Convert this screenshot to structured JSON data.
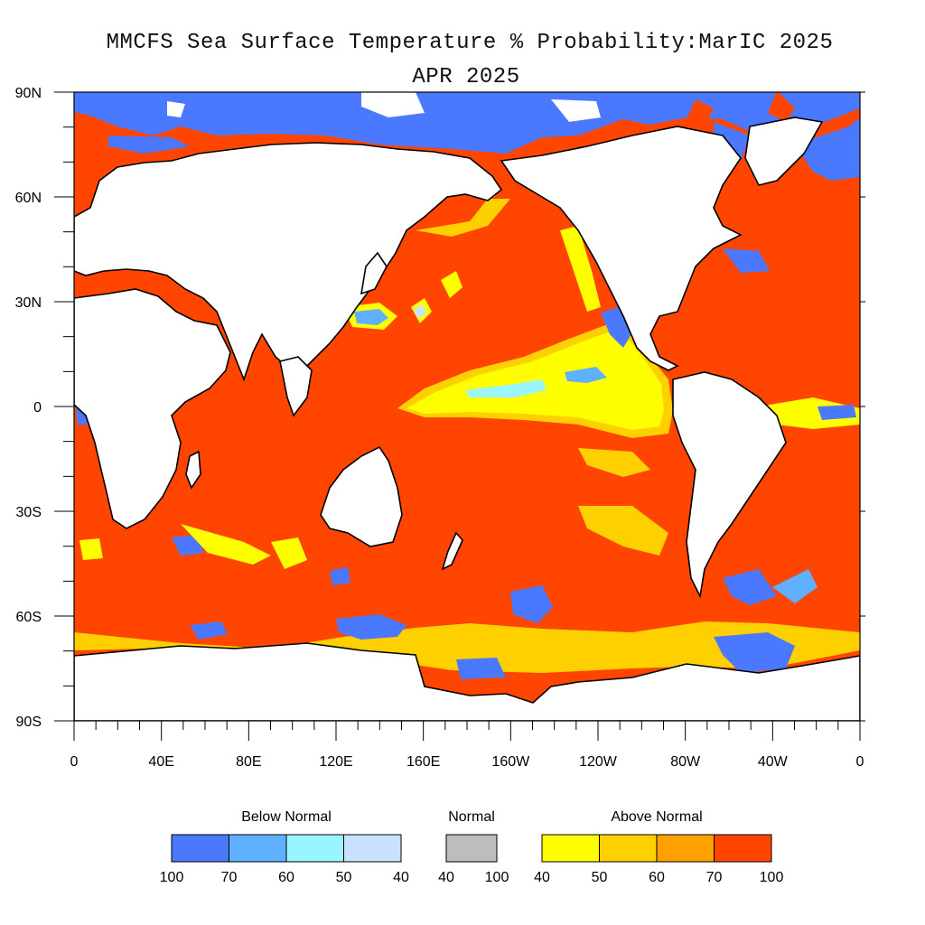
{
  "title": {
    "line1": "MMCFS Sea Surface Temperature % Probability:MarIC 2025",
    "line2": "APR 2025"
  },
  "map": {
    "lat_labels": [
      "90N",
      "60N",
      "30N",
      "0",
      "30S",
      "60S",
      "90S"
    ],
    "lon_labels": [
      "0",
      "40E",
      "80E",
      "120E",
      "160E",
      "160W",
      "120W",
      "80W",
      "40W",
      "0"
    ],
    "colors": {
      "land": "#ffffff",
      "coast": "#000000",
      "above_100": "#ff4500",
      "above_70": "#ff9f00",
      "above_60": "#ffd000",
      "above_50": "#ffff00",
      "below_50": "#c8e1ff",
      "below_60": "#99f5ff",
      "below_70": "#5fb0ff",
      "below_100": "#4a78ff"
    }
  },
  "legend": {
    "below": {
      "title": "Below Normal",
      "colors": [
        "#4a78ff",
        "#5fb0ff",
        "#99f5ff",
        "#c8e1ff"
      ],
      "ticks": [
        "100",
        "70",
        "60",
        "50",
        "40"
      ]
    },
    "normal": {
      "title": "Normal",
      "color": "#bdbdbd",
      "ticks": [
        "40",
        "100"
      ]
    },
    "above": {
      "title": "Above Normal",
      "colors": [
        "#ffff00",
        "#ffd000",
        "#ff9f00",
        "#ff4500"
      ],
      "ticks": [
        "40",
        "50",
        "60",
        "70",
        "100"
      ]
    }
  }
}
